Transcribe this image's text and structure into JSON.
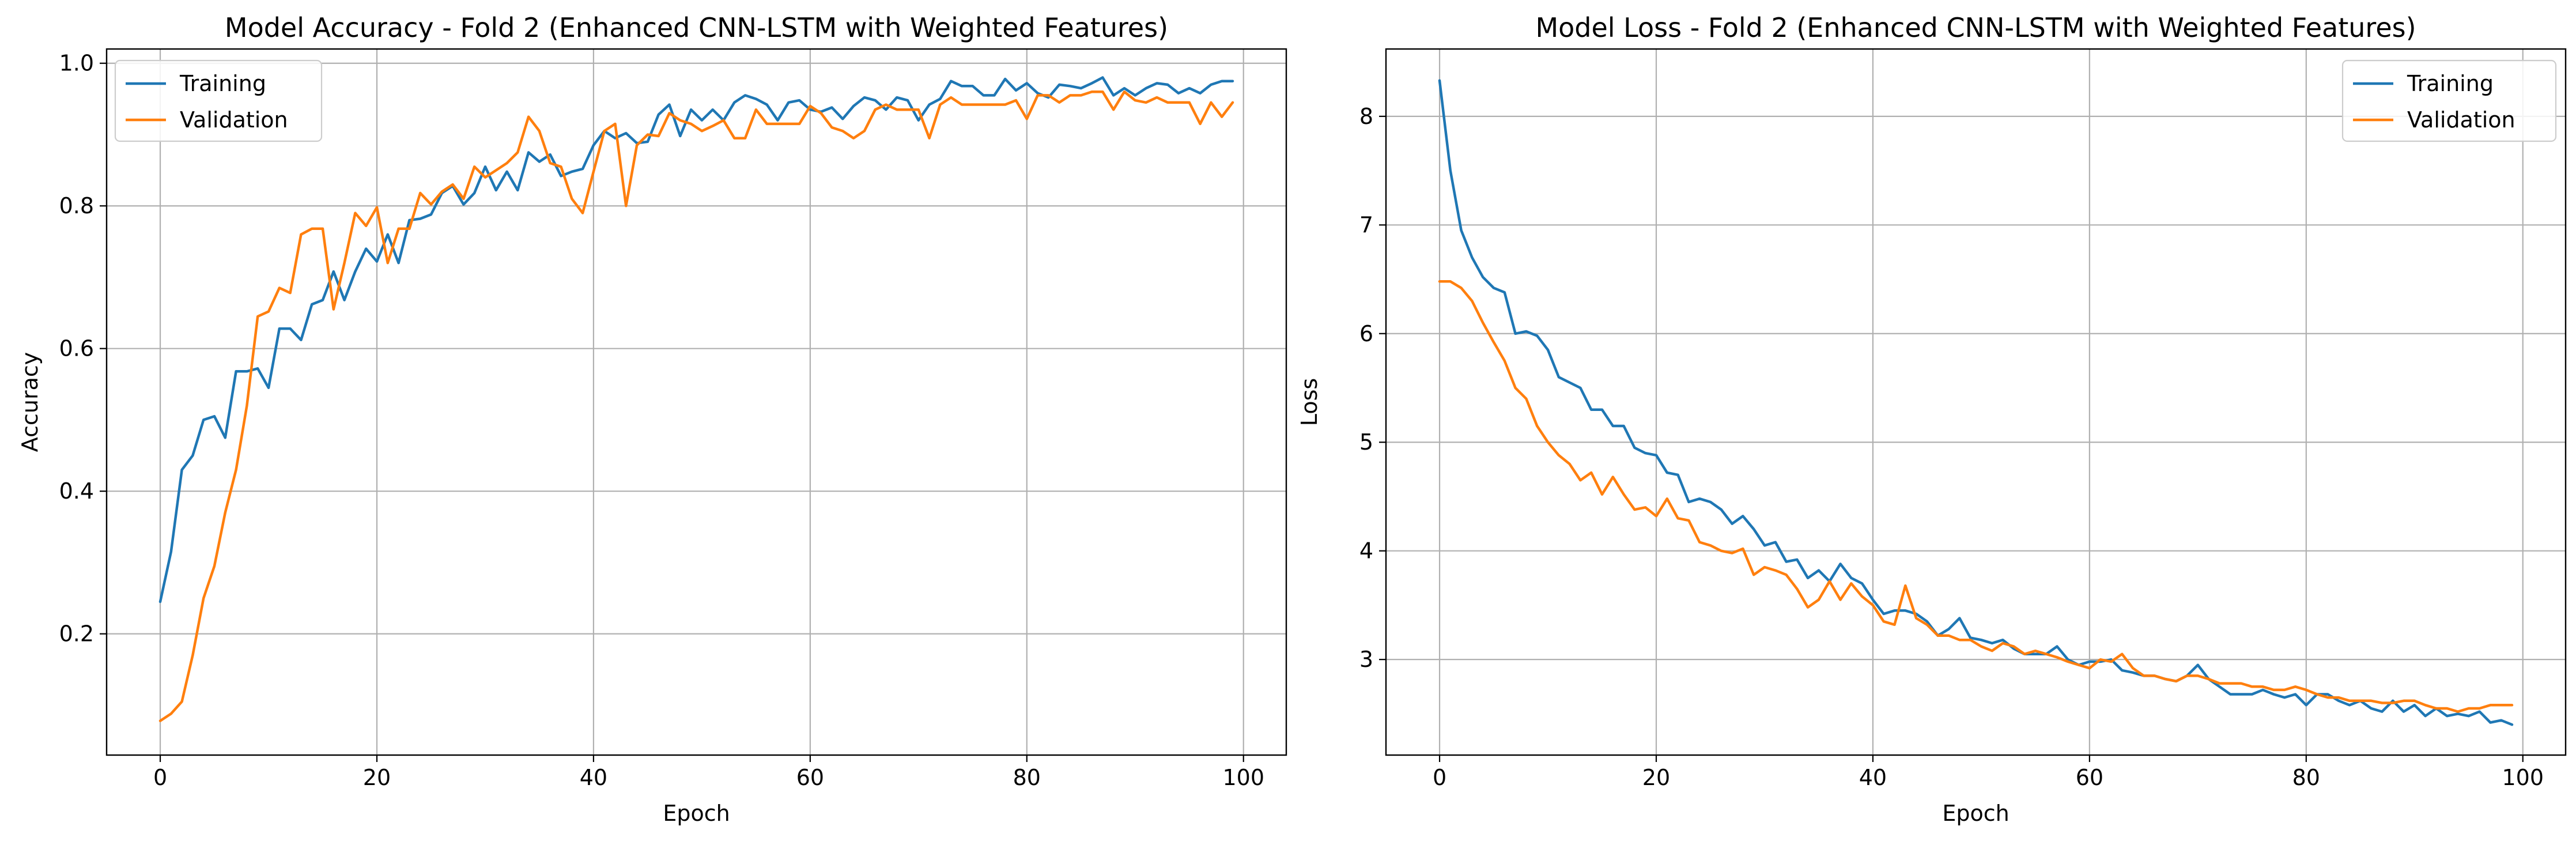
{
  "colors": {
    "training": "#1f77b4",
    "validation": "#ff7f0e",
    "grid": "#b0b0b0"
  },
  "chart_data": [
    {
      "type": "line",
      "title": "Model Accuracy - Fold 2 (Enhanced CNN-LSTM with Weighted Features)",
      "xlabel": "Epoch",
      "ylabel": "Accuracy",
      "xlim": [
        -4.95,
        103.95
      ],
      "ylim": [
        0.03,
        1.02
      ],
      "xticks": [
        0,
        20,
        40,
        60,
        80,
        100
      ],
      "xtick_labels": [
        "0",
        "20",
        "40",
        "60",
        "80",
        "100"
      ],
      "yticks": [
        0.2,
        0.4,
        0.6,
        0.8,
        1.0
      ],
      "ytick_labels": [
        "0.2",
        "0.4",
        "0.6",
        "0.8",
        "1.0"
      ],
      "grid": true,
      "legend": "upper left",
      "series": [
        {
          "name": "Training",
          "color": "#1f77b4",
          "values": [
            0.245,
            0.315,
            0.43,
            0.45,
            0.5,
            0.505,
            0.475,
            0.568,
            0.568,
            0.572,
            0.545,
            0.628,
            0.628,
            0.612,
            0.662,
            0.668,
            0.708,
            0.668,
            0.708,
            0.74,
            0.722,
            0.76,
            0.72,
            0.78,
            0.782,
            0.788,
            0.818,
            0.828,
            0.802,
            0.818,
            0.855,
            0.822,
            0.848,
            0.822,
            0.875,
            0.862,
            0.872,
            0.842,
            0.848,
            0.852,
            0.885,
            0.905,
            0.895,
            0.902,
            0.888,
            0.89,
            0.928,
            0.942,
            0.898,
            0.935,
            0.92,
            0.935,
            0.92,
            0.945,
            0.955,
            0.95,
            0.942,
            0.92,
            0.945,
            0.948,
            0.935,
            0.932,
            0.938,
            0.922,
            0.94,
            0.952,
            0.948,
            0.935,
            0.952,
            0.948,
            0.92,
            0.942,
            0.95,
            0.975,
            0.968,
            0.968,
            0.955,
            0.955,
            0.978,
            0.962,
            0.972,
            0.958,
            0.952,
            0.97,
            0.968,
            0.965,
            0.972,
            0.98,
            0.955,
            0.965,
            0.955,
            0.965,
            0.972,
            0.97,
            0.958,
            0.965,
            0.958,
            0.97,
            0.975,
            0.975
          ]
        },
        {
          "name": "Validation",
          "color": "#ff7f0e",
          "values": [
            0.078,
            0.088,
            0.105,
            0.17,
            0.25,
            0.295,
            0.37,
            0.43,
            0.52,
            0.645,
            0.652,
            0.685,
            0.678,
            0.76,
            0.768,
            0.768,
            0.655,
            0.72,
            0.79,
            0.772,
            0.798,
            0.72,
            0.768,
            0.768,
            0.818,
            0.802,
            0.82,
            0.83,
            0.81,
            0.855,
            0.84,
            0.85,
            0.86,
            0.875,
            0.925,
            0.905,
            0.86,
            0.855,
            0.81,
            0.79,
            0.848,
            0.905,
            0.915,
            0.8,
            0.885,
            0.9,
            0.898,
            0.93,
            0.92,
            0.915,
            0.905,
            0.912,
            0.92,
            0.895,
            0.895,
            0.935,
            0.915,
            0.915,
            0.915,
            0.915,
            0.94,
            0.93,
            0.91,
            0.905,
            0.895,
            0.905,
            0.935,
            0.942,
            0.935,
            0.935,
            0.935,
            0.895,
            0.942,
            0.952,
            0.942,
            0.942,
            0.942,
            0.942,
            0.942,
            0.948,
            0.922,
            0.955,
            0.955,
            0.945,
            0.955,
            0.955,
            0.96,
            0.96,
            0.935,
            0.96,
            0.948,
            0.945,
            0.952,
            0.945,
            0.945,
            0.945,
            0.915,
            0.945,
            0.925,
            0.945
          ]
        }
      ]
    },
    {
      "type": "line",
      "title": "Model Loss - Fold 2 (Enhanced CNN-LSTM with Weighted Features)",
      "xlabel": "Epoch",
      "ylabel": "Loss",
      "xlim": [
        -4.95,
        103.95
      ],
      "ylim": [
        2.12,
        8.62
      ],
      "xticks": [
        0,
        20,
        40,
        60,
        80,
        100
      ],
      "xtick_labels": [
        "0",
        "20",
        "40",
        "60",
        "80",
        "100"
      ],
      "yticks": [
        3,
        4,
        5,
        6,
        7,
        8
      ],
      "ytick_labels": [
        "3",
        "4",
        "5",
        "6",
        "7",
        "8"
      ],
      "grid": true,
      "legend": "upper right",
      "series": [
        {
          "name": "Training",
          "color": "#1f77b4",
          "values": [
            8.33,
            7.5,
            6.95,
            6.7,
            6.52,
            6.42,
            6.38,
            6.0,
            6.02,
            5.98,
            5.85,
            5.6,
            5.55,
            5.5,
            5.3,
            5.3,
            5.15,
            5.15,
            4.95,
            4.9,
            4.88,
            4.72,
            4.7,
            4.45,
            4.48,
            4.45,
            4.38,
            4.25,
            4.32,
            4.2,
            4.05,
            4.08,
            3.9,
            3.92,
            3.75,
            3.82,
            3.72,
            3.88,
            3.75,
            3.7,
            3.55,
            3.42,
            3.45,
            3.45,
            3.42,
            3.35,
            3.22,
            3.28,
            3.38,
            3.2,
            3.18,
            3.15,
            3.18,
            3.1,
            3.05,
            3.05,
            3.05,
            3.12,
            3.0,
            2.95,
            2.98,
            2.98,
            3.0,
            2.9,
            2.88,
            2.85,
            2.85,
            2.82,
            2.8,
            2.85,
            2.95,
            2.82,
            2.75,
            2.68,
            2.68,
            2.68,
            2.72,
            2.68,
            2.65,
            2.68,
            2.58,
            2.68,
            2.68,
            2.62,
            2.58,
            2.62,
            2.55,
            2.52,
            2.62,
            2.52,
            2.58,
            2.48,
            2.55,
            2.48,
            2.5,
            2.48,
            2.52,
            2.42,
            2.44,
            2.4
          ]
        },
        {
          "name": "Validation",
          "color": "#ff7f0e",
          "values": [
            6.48,
            6.48,
            6.42,
            6.3,
            6.1,
            5.92,
            5.75,
            5.5,
            5.4,
            5.15,
            5.0,
            4.88,
            4.8,
            4.65,
            4.72,
            4.52,
            4.68,
            4.52,
            4.38,
            4.4,
            4.32,
            4.48,
            4.3,
            4.28,
            4.08,
            4.05,
            4.0,
            3.98,
            4.02,
            3.78,
            3.85,
            3.82,
            3.78,
            3.65,
            3.48,
            3.55,
            3.72,
            3.55,
            3.7,
            3.58,
            3.5,
            3.35,
            3.32,
            3.68,
            3.38,
            3.32,
            3.22,
            3.22,
            3.18,
            3.18,
            3.12,
            3.08,
            3.15,
            3.12,
            3.05,
            3.08,
            3.05,
            3.02,
            2.98,
            2.95,
            2.92,
            3.0,
            2.98,
            3.05,
            2.92,
            2.85,
            2.85,
            2.82,
            2.8,
            2.85,
            2.85,
            2.82,
            2.78,
            2.78,
            2.78,
            2.75,
            2.75,
            2.72,
            2.72,
            2.75,
            2.72,
            2.68,
            2.65,
            2.65,
            2.62,
            2.62,
            2.62,
            2.6,
            2.6,
            2.62,
            2.62,
            2.58,
            2.55,
            2.55,
            2.52,
            2.55,
            2.55,
            2.58,
            2.58,
            2.58
          ]
        }
      ]
    }
  ]
}
